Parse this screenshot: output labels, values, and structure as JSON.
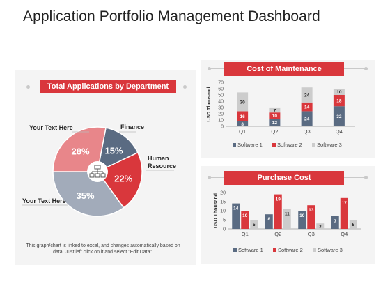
{
  "title": "Application Portfolio Management Dashboard",
  "colors": {
    "accent": "#d9373c",
    "software1": "#5a6b82",
    "software2": "#d9373c",
    "software3": "#cccccc"
  },
  "icon": "network-icon",
  "pie": {
    "title": "Total Applications by Department",
    "labels": {
      "finance": "Finance",
      "human_resource": "Human\nResource",
      "your_text_top": "Your Text Here",
      "your_text_bottom": "Your Text Here"
    },
    "note": "This graph/chart is linked to excel, and changes automatically based on data. Just left click on it and select \"Edit Data\"."
  },
  "chart_data": [
    {
      "type": "pie",
      "title": "Total Applications by Department",
      "slices": [
        {
          "label": "Finance",
          "value": 15,
          "display": "15%",
          "color": "#5a6b82"
        },
        {
          "label": "Human Resource",
          "value": 22,
          "display": "22%",
          "color": "#d9373c"
        },
        {
          "label": "Your Text Here",
          "value": 35,
          "display": "35%",
          "color": "#a2abba"
        },
        {
          "label": "Your Text Here",
          "value": 28,
          "display": "28%",
          "color": "#e8868a"
        }
      ]
    },
    {
      "type": "bar",
      "stacked": true,
      "title": "Cost of Maintenance",
      "ylabel": "USD Thousand",
      "ylim": [
        0,
        70
      ],
      "yticks": [
        0,
        10,
        20,
        30,
        40,
        50,
        60,
        70
      ],
      "categories": [
        "Q1",
        "Q2",
        "Q3",
        "Q4"
      ],
      "series": [
        {
          "name": "Software 1",
          "values": [
            8,
            12,
            24,
            32
          ]
        },
        {
          "name": "Software 2",
          "values": [
            16,
            10,
            14,
            18
          ]
        },
        {
          "name": "Software 3",
          "values": [
            30,
            7,
            24,
            10
          ]
        }
      ],
      "legend": "bottom"
    },
    {
      "type": "bar",
      "stacked": false,
      "title": "Purchase Cost",
      "ylabel": "USD Thousand",
      "ylim": [
        0,
        20
      ],
      "yticks": [
        0,
        5,
        10,
        15,
        20
      ],
      "categories": [
        "Q1",
        "Q2",
        "Q3",
        "Q4"
      ],
      "series": [
        {
          "name": "Software 1",
          "values": [
            14,
            8,
            10,
            7
          ]
        },
        {
          "name": "Software 2",
          "values": [
            10,
            19,
            13,
            17
          ]
        },
        {
          "name": "Software 3",
          "values": [
            5,
            11,
            3,
            5
          ]
        }
      ],
      "legend": "bottom"
    }
  ]
}
